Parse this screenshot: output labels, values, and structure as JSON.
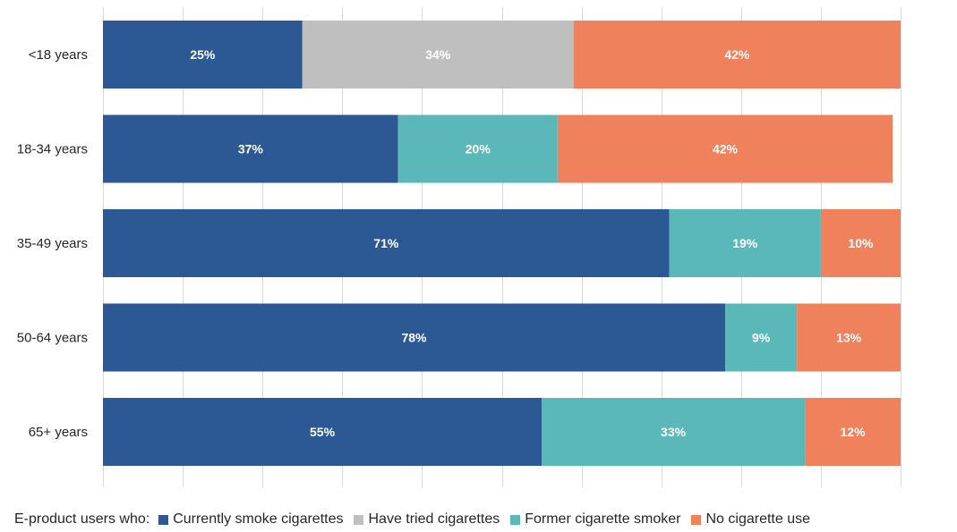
{
  "chart_data": {
    "type": "bar",
    "orientation": "horizontal",
    "stacked": true,
    "categories": [
      "<18 years",
      "18-34 years",
      "35-49 years",
      "50-64 years",
      "65+ years"
    ],
    "series": [
      {
        "name": "Currently smoke cigarettes",
        "color": "#2c5893",
        "values": [
          25,
          37,
          71,
          78,
          55
        ],
        "labels": [
          "25%",
          "37%",
          "71%",
          "78%",
          "55%"
        ]
      },
      {
        "name": "Have tried cigarettes",
        "color": "#bfbfbf",
        "values": [
          34,
          0,
          0,
          0,
          0
        ],
        "labels": [
          "34%",
          "",
          "",
          "",
          ""
        ]
      },
      {
        "name": "Former cigarette smoker",
        "color": "#5bb8b9",
        "values": [
          0,
          20,
          19,
          9,
          33
        ],
        "labels": [
          "",
          "20%",
          "19%",
          "9%",
          "33%"
        ]
      },
      {
        "name": "No cigarette use",
        "color": "#ef825c",
        "values": [
          42,
          42,
          10,
          13,
          12
        ],
        "labels": [
          "42%",
          "42%",
          "10%",
          "13%",
          "12%"
        ]
      }
    ],
    "xlim": [
      0,
      100
    ],
    "grid": true,
    "legend": {
      "title": "E-product users who:",
      "position": "bottom"
    }
  }
}
